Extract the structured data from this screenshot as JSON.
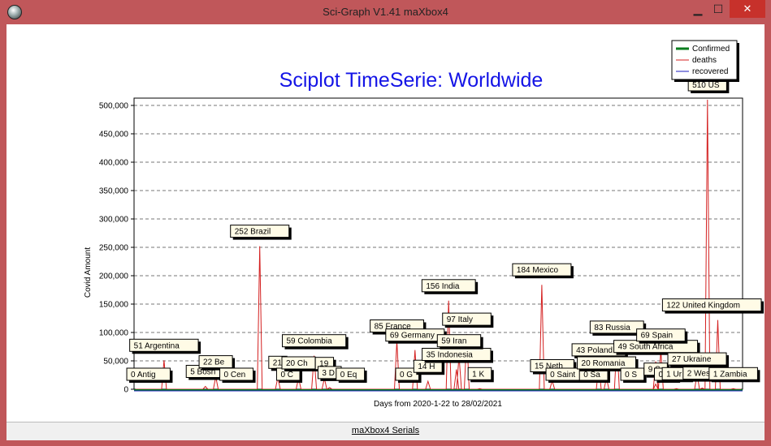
{
  "window": {
    "title": "Sci-Graph V1.41 maXbox4",
    "minimize_glyph": "▁",
    "maximize_glyph": "☐",
    "close_glyph": "✕"
  },
  "status_bar": {
    "link": "maXbox4 Serials"
  },
  "colors": {
    "confirmed": "#0a7d1e",
    "deaths": "#d42020",
    "recovered": "#1b1bbf",
    "title": "#1414e6"
  },
  "chart_data": {
    "type": "line",
    "title": "Sciplot TimeSerie: Worldwide",
    "xlabel": "Days from 2020-1-22 to 28/02/2021",
    "ylabel": "Covid Amount",
    "ylim": [
      0,
      500000
    ],
    "yticks": [
      "0",
      "50,000",
      "100,000",
      "150,000",
      "200,000",
      "250,000",
      "300,000",
      "350,000",
      "400,000",
      "450,000",
      "500,000"
    ],
    "grid": true,
    "legend_position": "top-right",
    "series": [
      {
        "name": "Confirmed"
      },
      {
        "name": "deaths"
      },
      {
        "name": "recovered"
      }
    ],
    "countries": [
      {
        "label": "0 Antig",
        "x": 0.02,
        "value": 0
      },
      {
        "label": "51 Argentina",
        "x": 0.05,
        "value": 51000
      },
      {
        "label": "5 Bosn",
        "x": 0.13,
        "value": 5000
      },
      {
        "label": "22 Be",
        "x": 0.15,
        "value": 22000
      },
      {
        "label": "0 Cen",
        "x": 0.19,
        "value": 0
      },
      {
        "label": "252 Brazil",
        "x": 0.235,
        "value": 252000
      },
      {
        "label": "21",
        "x": 0.27,
        "value": 21000
      },
      {
        "label": "0 C",
        "x": 0.29,
        "value": 0
      },
      {
        "label": "20 Ch",
        "x": 0.31,
        "value": 20000
      },
      {
        "label": "59 Colombia",
        "x": 0.34,
        "value": 59000
      },
      {
        "label": "19",
        "x": 0.36,
        "value": 19000
      },
      {
        "label": "3 D",
        "x": 0.37,
        "value": 3000
      },
      {
        "label": "0 Eq",
        "x": 0.41,
        "value": 0
      },
      {
        "label": "85 France",
        "x": 0.5,
        "value": 85000
      },
      {
        "label": "69 Germany",
        "x": 0.535,
        "value": 69000
      },
      {
        "label": "0 G",
        "x": 0.52,
        "value": 0
      },
      {
        "label": "14 H",
        "x": 0.56,
        "value": 14000
      },
      {
        "label": "156 India",
        "x": 0.6,
        "value": 156000
      },
      {
        "label": "35 Indonesia",
        "x": 0.615,
        "value": 35000
      },
      {
        "label": "59 Iran",
        "x": 0.62,
        "value": 59000
      },
      {
        "label": "97 Italy",
        "x": 0.635,
        "value": 97000
      },
      {
        "label": "1 K",
        "x": 0.66,
        "value": 1000
      },
      {
        "label": "184 Mexico",
        "x": 0.78,
        "value": 184000
      },
      {
        "label": "15 Neth",
        "x": 0.8,
        "value": 15000
      },
      {
        "label": "0 Saint",
        "x": 0.83,
        "value": 0
      },
      {
        "label": "43 Poland",
        "x": 0.89,
        "value": 43000
      },
      {
        "label": "20 Romania",
        "x": 0.905,
        "value": 20000
      },
      {
        "label": "0 Sa",
        "x": 0.88,
        "value": 0
      },
      {
        "label": "83 Russia",
        "x": 0.925,
        "value": 83000
      },
      {
        "label": "0 S",
        "x": 0.955,
        "value": 0
      },
      {
        "label": "69 Spain",
        "x": 1.01,
        "value": 69000
      },
      {
        "label": "49 South Africa",
        "x": 1.0,
        "value": 49000
      },
      {
        "label": "9 S",
        "x": 1.0,
        "value": 9000
      },
      {
        "label": "0 T",
        "x": 1.02,
        "value": 0
      },
      {
        "label": "1 Ur",
        "x": 1.04,
        "value": 1000
      },
      {
        "label": "27 Ukraine",
        "x": 1.08,
        "value": 27000
      },
      {
        "label": "510 US",
        "x": 1.1,
        "value": 510000
      },
      {
        "label": "122 United Kingdom",
        "x": 1.12,
        "value": 122000
      },
      {
        "label": "2 West",
        "x": 1.09,
        "value": 2000
      },
      {
        "label": "1 Zambia",
        "x": 1.15,
        "value": 1000
      }
    ]
  }
}
